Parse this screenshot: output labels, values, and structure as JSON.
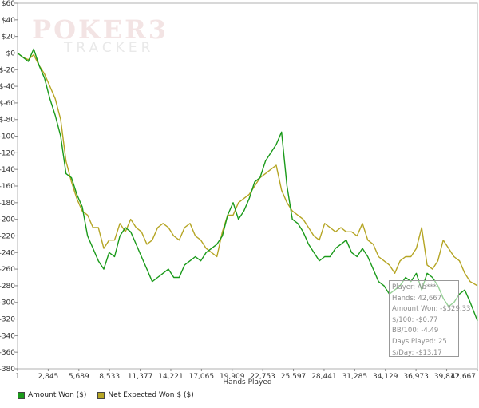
{
  "watermark": {
    "title": "POKER",
    "title_suffix": "3",
    "subtitle": "TRACKER"
  },
  "info_box": {
    "lines": [
      "Player: Ab***",
      "Hands: 42,667",
      "Amount Won: -$329.33",
      "$/100: -$0.77",
      "BB/100: -4.49",
      "Days Played: 25",
      "$/Day: -$13.17"
    ]
  },
  "legend": [
    {
      "label": "Amount Won ($)",
      "color": "#1a9a1a"
    },
    {
      "label": "Net Expected Won $ ($)",
      "color": "#b5a524"
    }
  ],
  "chart_data": {
    "type": "line",
    "xlabel": "Hands Played",
    "ylabel": "",
    "xlim": [
      1,
      42667
    ],
    "ylim": [
      -380,
      60
    ],
    "grid": false,
    "x_ticks": [
      1,
      2845,
      5689,
      8533,
      11377,
      14221,
      17065,
      19909,
      22753,
      25597,
      28441,
      31285,
      34129,
      36973,
      39817,
      42667
    ],
    "x_tick_labels": [
      "1",
      "2,845",
      "5,689",
      "8,533",
      "11,377",
      "14,221",
      "17,065",
      "19,909",
      "22,753",
      "25,597",
      "28,441",
      "31,285",
      "34,129",
      "36,973",
      "39,817",
      "42,667"
    ],
    "y_ticks": [
      60,
      40,
      20,
      0,
      -20,
      -40,
      -60,
      -80,
      -100,
      -120,
      -140,
      -160,
      -180,
      -200,
      -220,
      -240,
      -260,
      -280,
      -300,
      -320,
      -340,
      -360,
      -380
    ],
    "y_tick_labels": [
      "$60",
      "$40",
      "$20",
      "$0",
      "$-20",
      "$-40",
      "$-60",
      "$-80",
      "$-100",
      "$-120",
      "$-140",
      "$-160",
      "$-180",
      "$-200",
      "$-220",
      "$-240",
      "$-260",
      "$-280",
      "$-300",
      "$-320",
      "$-340",
      "$-360",
      "$-380"
    ],
    "x": [
      1,
      500,
      1000,
      1500,
      2000,
      2500,
      3000,
      3500,
      4000,
      4500,
      5000,
      5500,
      6000,
      6500,
      7000,
      7500,
      8000,
      8500,
      9000,
      9500,
      10000,
      10500,
      11000,
      11500,
      12000,
      12500,
      13000,
      13500,
      14000,
      14500,
      15000,
      15500,
      16000,
      16500,
      17000,
      17500,
      18000,
      18500,
      19000,
      19500,
      20000,
      20500,
      21000,
      21500,
      22000,
      22500,
      23000,
      23500,
      24000,
      24500,
      25000,
      25500,
      26000,
      26500,
      27000,
      27500,
      28000,
      28500,
      29000,
      29500,
      30000,
      30500,
      31000,
      31500,
      32000,
      32500,
      33000,
      33500,
      34000,
      34500,
      35000,
      35500,
      36000,
      36500,
      37000,
      37500,
      38000,
      38500,
      39000,
      39500,
      40000,
      40500,
      41000,
      41500,
      42000,
      42667
    ],
    "series": [
      {
        "name": "Amount Won ($)",
        "color": "#1a9a1a",
        "values": [
          0,
          -5,
          -10,
          5,
          -15,
          -30,
          -55,
          -75,
          -100,
          -145,
          -150,
          -170,
          -185,
          -220,
          -235,
          -250,
          -260,
          -240,
          -245,
          -220,
          -210,
          -215,
          -230,
          -245,
          -260,
          -275,
          -270,
          -265,
          -260,
          -270,
          -270,
          -255,
          -250,
          -245,
          -250,
          -240,
          -235,
          -230,
          -220,
          -195,
          -180,
          -200,
          -190,
          -175,
          -155,
          -150,
          -130,
          -120,
          -110,
          -95,
          -160,
          -200,
          -205,
          -215,
          -230,
          -240,
          -250,
          -245,
          -245,
          -235,
          -230,
          -225,
          -240,
          -245,
          -235,
          -245,
          -260,
          -275,
          -280,
          -290,
          -285,
          -280,
          -270,
          -275,
          -265,
          -285,
          -265,
          -270,
          -280,
          -295,
          -305,
          -300,
          -290,
          -285,
          -300,
          -322
        ]
      },
      {
        "name": "Net Expected Won $ ($)",
        "color": "#b5a524",
        "values": [
          0,
          -5,
          -8,
          -2,
          -15,
          -25,
          -40,
          -55,
          -80,
          -130,
          -155,
          -175,
          -190,
          -195,
          -210,
          -210,
          -235,
          -225,
          -225,
          -205,
          -215,
          -200,
          -210,
          -215,
          -230,
          -225,
          -210,
          -205,
          -210,
          -220,
          -225,
          -210,
          -205,
          -220,
          -225,
          -235,
          -240,
          -245,
          -215,
          -195,
          -195,
          -180,
          -175,
          -170,
          -160,
          -150,
          -145,
          -140,
          -135,
          -165,
          -180,
          -190,
          -195,
          -200,
          -210,
          -220,
          -225,
          -205,
          -210,
          -215,
          -210,
          -215,
          -215,
          -220,
          -205,
          -225,
          -230,
          -245,
          -250,
          -255,
          -265,
          -250,
          -245,
          -245,
          -235,
          -210,
          -255,
          -260,
          -250,
          -225,
          -235,
          -245,
          -250,
          -265,
          -275,
          -280
        ]
      }
    ]
  }
}
